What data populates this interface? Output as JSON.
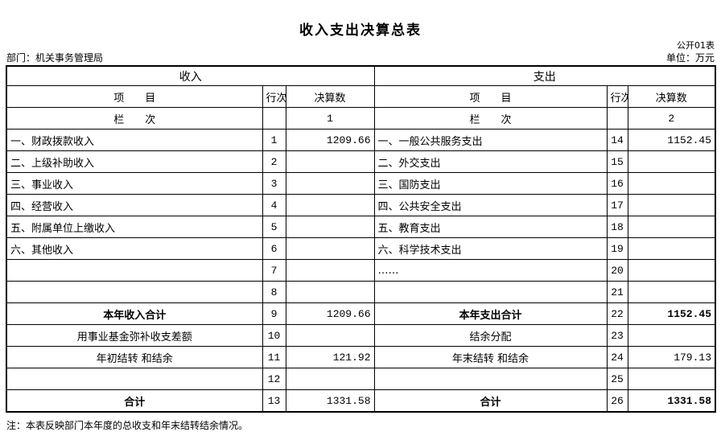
{
  "page": {
    "title": "收入支出决算总表",
    "table_code": "公开01表",
    "unit_label": "单位：万元",
    "department_label": "部门：机关事务管理局",
    "footnote": "注：本表反映部门本年度的总收支和年末结转结余情况。"
  },
  "table": {
    "sections": {
      "income": "收入",
      "expense": "支出"
    },
    "columns": {
      "item": "项　　目",
      "line_no": "行次",
      "amount": "决算数"
    },
    "column_index": {
      "label": "栏　　次",
      "income": "1",
      "expense": "2"
    },
    "rows": [
      {
        "income": {
          "label": "一、财政拨款收入",
          "line": "1",
          "amount": "1209.66",
          "align": "left",
          "bold": false,
          "amount_bold": false
        },
        "expense": {
          "label": "一、一般公共服务支出",
          "line": "14",
          "amount": "1152.45",
          "align": "left",
          "bold": false,
          "amount_bold": false
        }
      },
      {
        "income": {
          "label": "二、上级补助收入",
          "line": "2",
          "amount": "",
          "align": "left",
          "bold": false,
          "amount_bold": false
        },
        "expense": {
          "label": "二、外交支出",
          "line": "15",
          "amount": "",
          "align": "left",
          "bold": false,
          "amount_bold": false
        }
      },
      {
        "income": {
          "label": "三、事业收入",
          "line": "3",
          "amount": "",
          "align": "left",
          "bold": false,
          "amount_bold": false
        },
        "expense": {
          "label": "三、国防支出",
          "line": "16",
          "amount": "",
          "align": "left",
          "bold": false,
          "amount_bold": false
        }
      },
      {
        "income": {
          "label": "四、经营收入",
          "line": "4",
          "amount": "",
          "align": "left",
          "bold": false,
          "amount_bold": false
        },
        "expense": {
          "label": "四、公共安全支出",
          "line": "17",
          "amount": "",
          "align": "left",
          "bold": false,
          "amount_bold": false
        }
      },
      {
        "income": {
          "label": "五、附属单位上缴收入",
          "line": "5",
          "amount": "",
          "align": "left",
          "bold": false,
          "amount_bold": false
        },
        "expense": {
          "label": "五、教育支出",
          "line": "18",
          "amount": "",
          "align": "left",
          "bold": false,
          "amount_bold": false
        }
      },
      {
        "income": {
          "label": "六、其他收入",
          "line": "6",
          "amount": "",
          "align": "left",
          "bold": false,
          "amount_bold": false
        },
        "expense": {
          "label": "六、科学技术支出",
          "line": "19",
          "amount": "",
          "align": "left",
          "bold": false,
          "amount_bold": false
        }
      },
      {
        "income": {
          "label": "",
          "line": "7",
          "amount": "",
          "align": "left",
          "bold": false,
          "amount_bold": false
        },
        "expense": {
          "label": "……",
          "line": "20",
          "amount": "",
          "align": "left",
          "bold": false,
          "amount_bold": false
        }
      },
      {
        "income": {
          "label": "",
          "line": "8",
          "amount": "",
          "align": "left",
          "bold": false,
          "amount_bold": false
        },
        "expense": {
          "label": "",
          "line": "21",
          "amount": "",
          "align": "left",
          "bold": false,
          "amount_bold": false
        }
      },
      {
        "income": {
          "label": "本年收入合计",
          "line": "9",
          "amount": "1209.66",
          "align": "center",
          "bold": true,
          "amount_bold": false
        },
        "expense": {
          "label": "本年支出合计",
          "line": "22",
          "amount": "1152.45",
          "align": "center",
          "bold": true,
          "amount_bold": true
        }
      },
      {
        "income": {
          "label": "用事业基金弥补收支差额",
          "line": "10",
          "amount": "",
          "align": "center",
          "bold": false,
          "amount_bold": false
        },
        "expense": {
          "label": "结余分配",
          "line": "23",
          "amount": "",
          "align": "center",
          "bold": false,
          "amount_bold": false
        }
      },
      {
        "income": {
          "label": "年初结转 和结余",
          "line": "11",
          "amount": "121.92",
          "align": "center",
          "bold": false,
          "amount_bold": false
        },
        "expense": {
          "label": "年末结转 和结余",
          "line": "24",
          "amount": "179.13",
          "align": "center",
          "bold": false,
          "amount_bold": false
        }
      },
      {
        "income": {
          "label": "",
          "line": "12",
          "amount": "",
          "align": "left",
          "bold": false,
          "amount_bold": false
        },
        "expense": {
          "label": "",
          "line": "25",
          "amount": "",
          "align": "left",
          "bold": false,
          "amount_bold": false
        }
      },
      {
        "income": {
          "label": "合计",
          "line": "13",
          "amount": "1331.58",
          "align": "center",
          "bold": true,
          "amount_bold": false
        },
        "expense": {
          "label": "合计",
          "line": "26",
          "amount": "1331.58",
          "align": "center",
          "bold": true,
          "amount_bold": true
        }
      }
    ]
  }
}
